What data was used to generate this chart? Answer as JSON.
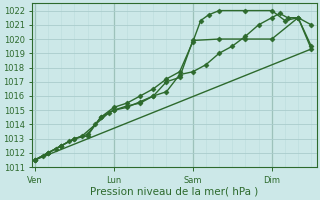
{
  "xlabel": "Pression niveau de la mer( hPa )",
  "bg_color": "#cce8e8",
  "grid_major_color": "#aacccc",
  "grid_minor_color": "#bbdddd",
  "line_color": "#2d6a2d",
  "ylim": [
    1011,
    1022.5
  ],
  "yticks": [
    1011,
    1012,
    1013,
    1014,
    1015,
    1016,
    1017,
    1018,
    1019,
    1020,
    1021,
    1022
  ],
  "day_labels": [
    "Ven",
    "Lun",
    "Sam",
    "Dim"
  ],
  "day_positions": [
    0,
    3,
    6,
    9
  ],
  "xlim": [
    -0.1,
    10.7
  ],
  "vline_positions": [
    0,
    3,
    6,
    9
  ],
  "series": [
    {
      "x": [
        0,
        0.3,
        0.5,
        0.8,
        1.0,
        1.3,
        1.8,
        2.3,
        2.8,
        3.0,
        3.5,
        4.0,
        4.5,
        5.0,
        5.5,
        6.0,
        6.5,
        7.0,
        7.5,
        8.0,
        8.5,
        9.0,
        9.3,
        9.6,
        10.0,
        10.5
      ],
      "y": [
        1011.5,
        1011.8,
        1012.0,
        1012.3,
        1012.5,
        1012.8,
        1013.2,
        1014.0,
        1014.8,
        1015.0,
        1015.3,
        1015.5,
        1016.0,
        1016.3,
        1017.5,
        1017.7,
        1018.2,
        1019.0,
        1019.5,
        1020.2,
        1021.0,
        1021.5,
        1021.8,
        1021.5,
        1021.5,
        1019.5
      ],
      "marker": "D",
      "markersize": 2.5,
      "linewidth": 1.0
    },
    {
      "x": [
        0,
        0.5,
        1.0,
        1.5,
        2.0,
        2.5,
        3.0,
        3.5,
        4.0,
        4.5,
        5.0,
        5.5,
        6.0,
        6.3,
        6.6,
        7.0,
        8.0,
        9.0,
        9.5,
        10.0,
        10.5
      ],
      "y": [
        1011.5,
        1012.0,
        1012.5,
        1013.0,
        1013.3,
        1014.5,
        1015.2,
        1015.5,
        1016.0,
        1016.5,
        1017.2,
        1017.7,
        1019.8,
        1021.3,
        1021.7,
        1022.0,
        1022.0,
        1022.0,
        1021.3,
        1021.5,
        1021.0
      ],
      "marker": "D",
      "markersize": 2.5,
      "linewidth": 1.0
    },
    {
      "x": [
        0,
        0.5,
        1.0,
        1.5,
        2.0,
        2.5,
        3.0,
        3.5,
        4.0,
        4.5,
        5.0,
        5.5,
        6.0,
        7.0,
        8.0,
        9.0,
        10.0,
        10.5
      ],
      "y": [
        1011.5,
        1012.0,
        1012.5,
        1013.0,
        1013.2,
        1014.5,
        1015.0,
        1015.2,
        1015.6,
        1016.0,
        1017.0,
        1017.3,
        1019.9,
        1020.0,
        1020.0,
        1020.0,
        1021.5,
        1019.3
      ],
      "marker": "D",
      "markersize": 2.5,
      "linewidth": 1.0
    },
    {
      "x": [
        0,
        10.5
      ],
      "y": [
        1011.5,
        1019.3
      ],
      "marker": null,
      "markersize": 0,
      "linewidth": 1.0
    }
  ],
  "tick_fontsize": 6.0,
  "label_fontsize": 7.5
}
